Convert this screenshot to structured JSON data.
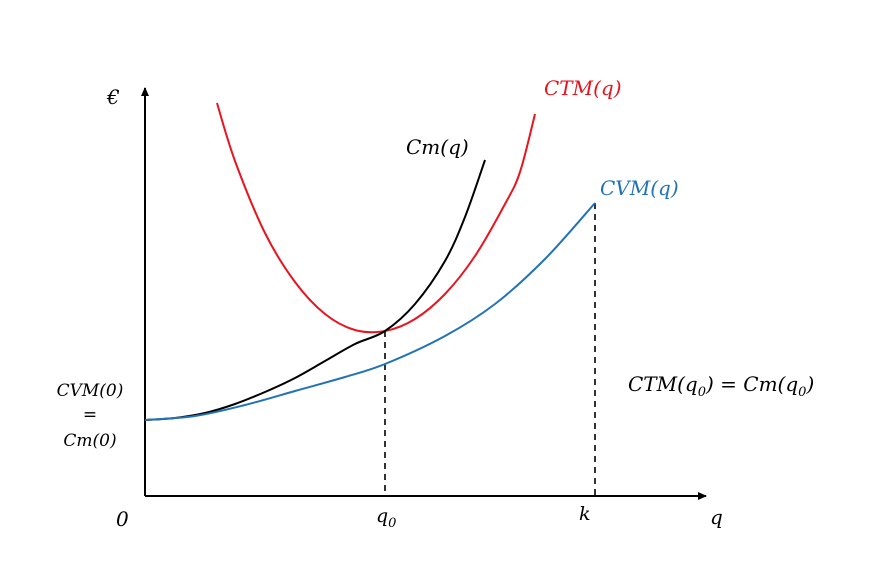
{
  "chart_data": {
    "type": "line",
    "title": "",
    "xlabel": "q",
    "ylabel": "€",
    "origin_label": "0",
    "x_ticks": [
      {
        "label": "q",
        "sub": "0",
        "value": 0.24
      },
      {
        "label": "k",
        "sub": "",
        "value": 0.45
      }
    ],
    "y_intercept_label": {
      "line1": "CVM(0)",
      "line2": "=",
      "line3": "Cm(0)"
    },
    "annotation": {
      "text_parts": [
        "CTM(q",
        "0",
        ") = Cm(q",
        "0",
        ")"
      ]
    },
    "xlim": [
      0,
      0.56
    ],
    "ylim": [
      0,
      0.41
    ],
    "series": [
      {
        "name": "CTM(q)",
        "color": "#e8141e",
        "x": [
          0.072,
          0.09,
          0.12,
          0.15,
          0.18,
          0.21,
          0.24,
          0.27,
          0.3,
          0.33,
          0.36,
          0.375,
          0.39
        ],
        "y": [
          0.393,
          0.335,
          0.263,
          0.214,
          0.182,
          0.166,
          0.165,
          0.177,
          0.202,
          0.24,
          0.292,
          0.324,
          0.382
        ]
      },
      {
        "name": "Cm(q)",
        "color": "#000000",
        "x": [
          0,
          0.03,
          0.06,
          0.09,
          0.12,
          0.15,
          0.18,
          0.21,
          0.24,
          0.27,
          0.3,
          0.32,
          0.34
        ],
        "y": [
          0.076,
          0.078,
          0.083,
          0.092,
          0.104,
          0.118,
          0.135,
          0.152,
          0.165,
          0.192,
          0.235,
          0.279,
          0.336
        ]
      },
      {
        "name": "CVM(q)",
        "color": "#2273b5",
        "x": [
          0,
          0.05,
          0.1,
          0.15,
          0.2,
          0.24,
          0.3,
          0.35,
          0.4,
          0.45
        ],
        "y": [
          0.076,
          0.08,
          0.091,
          0.105,
          0.119,
          0.132,
          0.16,
          0.192,
          0.237,
          0.293
        ]
      }
    ],
    "guides": [
      {
        "x": 0.24,
        "y": 0.165
      },
      {
        "x": 0.45,
        "y": 0.293
      }
    ]
  }
}
